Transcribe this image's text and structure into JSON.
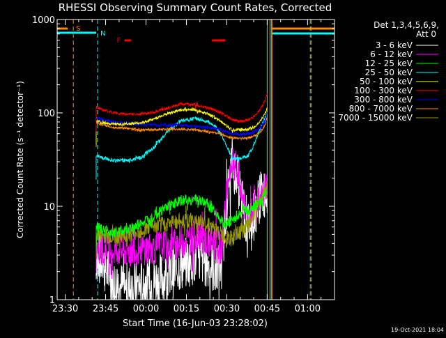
{
  "chart_data": {
    "type": "line",
    "title": "RHESSI Observing Summary Count Rates, Corrected",
    "xlabel": "Start Time (16-Jun-03 23:28:02)",
    "ylabel": "Corrected Count Rate (s⁻¹ detector⁻¹)",
    "xtick_labels": [
      "23:30",
      "23:45",
      "00:00",
      "00:15",
      "00:30",
      "00:45",
      "01:00"
    ],
    "xtick_minutes": [
      2,
      17,
      32,
      47,
      62,
      77,
      92
    ],
    "xlim_minutes": [
      -1,
      102
    ],
    "ytick_labels": [
      "1",
      "10",
      "100",
      "1000"
    ],
    "ytick_values": [
      1,
      10,
      100,
      1000
    ],
    "ylim": [
      1,
      1000
    ],
    "yscale": "log",
    "legend_title_line1": "Det 1,3,4,5,6,9,",
    "legend_title_line2": "Att 0",
    "date_stamp": "19-Oct-2021 18:04",
    "flag_labels": {
      "saa": "S",
      "night": "N",
      "flare": "F"
    },
    "saa_lines_minutes": [
      5,
      78,
      93.5
    ],
    "night_lines_minutes": [
      14,
      78.5,
      93
    ],
    "flare_bars_minutes": [
      [
        24,
        26.5
      ],
      [
        56.5,
        61.5
      ]
    ],
    "data_gap_minutes": [
      77,
      78.8
    ],
    "series": [
      {
        "name": "3 - 6 keV",
        "color": "#ffffff",
        "x": [
          13.5,
          16,
          20,
          25,
          30,
          35,
          40,
          45,
          50,
          55,
          58,
          60,
          62,
          64,
          66,
          68,
          70,
          72,
          74,
          76,
          77
        ],
        "y": [
          3,
          2.4,
          1.5,
          1.3,
          1.4,
          1.6,
          1.8,
          2.3,
          2.8,
          2.5,
          2.0,
          2.3,
          12,
          30,
          20,
          10,
          6,
          8,
          12,
          14,
          16
        ]
      },
      {
        "name": "6 - 12 keV",
        "color": "#ff00ff",
        "x": [
          13.5,
          16,
          20,
          25,
          30,
          35,
          40,
          45,
          50,
          52,
          55,
          58,
          60,
          62,
          64,
          66,
          68,
          70,
          72,
          74,
          76,
          77
        ],
        "y": [
          3.5,
          3.5,
          3.4,
          3.3,
          3.5,
          3.6,
          3.8,
          4.2,
          4.6,
          5.2,
          4.0,
          3.6,
          3.5,
          14,
          34,
          22,
          12,
          7,
          9,
          12,
          15,
          16
        ]
      },
      {
        "name": "12 - 25 keV",
        "color": "#00ff00",
        "x": [
          13.5,
          16,
          20,
          25,
          30,
          35,
          40,
          45,
          50,
          55,
          58,
          60,
          62,
          64,
          66,
          68,
          70,
          72,
          74,
          76,
          77
        ],
        "y": [
          6,
          5.5,
          5.3,
          5.5,
          6.5,
          8.0,
          10,
          11.5,
          12,
          10.5,
          8.5,
          7.0,
          6.5,
          7.0,
          8.0,
          9.0,
          9.0,
          10,
          11,
          13,
          15
        ]
      },
      {
        "name": "25 - 50 keV",
        "color": "#00ffff",
        "x": [
          13.5,
          16,
          20,
          25,
          30,
          35,
          40,
          45,
          50,
          55,
          58,
          60,
          62,
          64,
          66,
          68,
          70,
          72,
          74,
          76,
          77
        ],
        "y": [
          35,
          33,
          31,
          31,
          33,
          43,
          63,
          82,
          88,
          80,
          70,
          58,
          45,
          32,
          32,
          33,
          35,
          45,
          65,
          85,
          100
        ]
      },
      {
        "name": "50 - 100 keV",
        "color": "#ffff00",
        "x": [
          13.5,
          16,
          20,
          25,
          30,
          35,
          40,
          45,
          50,
          55,
          58,
          60,
          62,
          64,
          66,
          68,
          70,
          72,
          74,
          76,
          77
        ],
        "y": [
          82,
          78,
          76,
          76,
          78,
          86,
          98,
          108,
          108,
          98,
          88,
          80,
          72,
          66,
          66,
          66,
          67,
          70,
          78,
          95,
          115
        ]
      },
      {
        "name": "100 - 300 keV",
        "color": "#ff0000",
        "x": [
          13.5,
          16,
          20,
          25,
          30,
          35,
          40,
          45,
          50,
          55,
          58,
          60,
          62,
          64,
          66,
          68,
          70,
          72,
          74,
          76,
          77
        ],
        "y": [
          115,
          108,
          100,
          97,
          97,
          102,
          113,
          125,
          122,
          113,
          106,
          100,
          93,
          85,
          82,
          82,
          84,
          90,
          105,
          130,
          160
        ]
      },
      {
        "name": "300 - 800 keV",
        "color": "#0000ff",
        "x": [
          13.5,
          16,
          20,
          25,
          30,
          35,
          40,
          45,
          50,
          55,
          58,
          60,
          62,
          64,
          66,
          68,
          70,
          72,
          74,
          76,
          77
        ],
        "y": [
          90,
          85,
          80,
          77,
          75,
          74,
          74,
          74,
          72,
          70,
          68,
          66,
          63,
          60,
          59,
          59,
          60,
          62,
          67,
          80,
          100
        ]
      },
      {
        "name": "800 - 7000 keV",
        "color": "#ff8c00",
        "x": [
          13.5,
          16,
          20,
          25,
          30,
          35,
          40,
          45,
          50,
          55,
          58,
          60,
          62,
          64,
          66,
          68,
          70,
          72,
          74,
          76,
          77
        ],
        "y": [
          78,
          74,
          70,
          68,
          66,
          66,
          67,
          67,
          66,
          63,
          61,
          59,
          56,
          54,
          53,
          53,
          54,
          56,
          60,
          72,
          90
        ]
      },
      {
        "name": "7000 - 15000 keV",
        "color": "#999900",
        "x": [
          13.5,
          16,
          20,
          25,
          30,
          35,
          40,
          45,
          50,
          55,
          58,
          60,
          62,
          64,
          66,
          68,
          70,
          72,
          74,
          76,
          77
        ],
        "y": [
          5,
          4.8,
          4.8,
          5,
          5.5,
          6,
          6.5,
          7,
          7,
          6.5,
          5.5,
          5,
          4.5,
          4.5,
          5,
          5.5,
          6,
          8,
          11,
          14,
          16
        ]
      }
    ]
  },
  "colors": {
    "background": "#000000",
    "axis": "#ffffff",
    "saa_marker": "#ff8c00",
    "night_marker": "#00ffff",
    "flare_marker": "#ff0000",
    "legend_title": "#ffffff"
  }
}
